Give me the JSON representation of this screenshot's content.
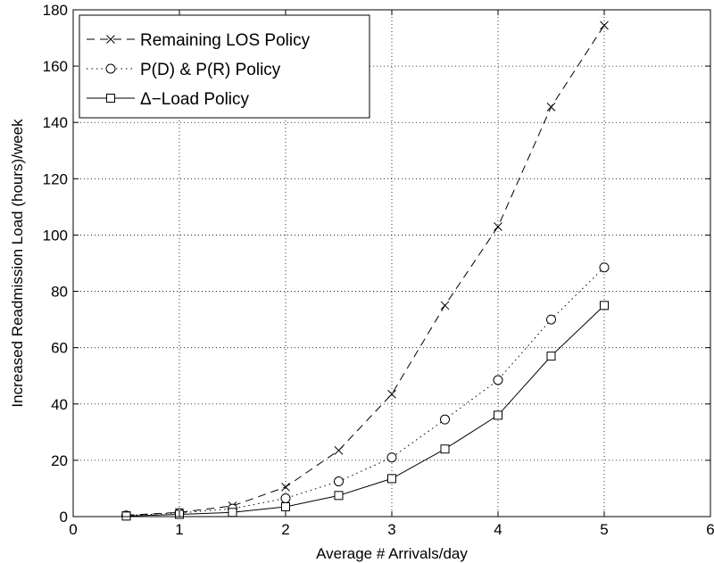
{
  "chart_data": {
    "type": "line",
    "title": "",
    "xlabel": "Average # Arrivals/day",
    "ylabel": "Increased Readmission Load (hours)/week",
    "xlim": [
      0,
      6
    ],
    "ylim": [
      0,
      180
    ],
    "xticks": [
      0,
      1,
      2,
      3,
      4,
      5,
      6
    ],
    "yticks": [
      0,
      20,
      40,
      60,
      80,
      100,
      120,
      140,
      160,
      180
    ],
    "grid": true,
    "legend_position": "top-left",
    "x": [
      0.5,
      1,
      1.5,
      2,
      2.5,
      3,
      3.5,
      4,
      4.5,
      5
    ],
    "series": [
      {
        "name": "Remaining LOS Policy",
        "line_style": "dashed",
        "marker": "x",
        "values": [
          0.5,
          1.5,
          3.8,
          10.5,
          23.5,
          43.5,
          75,
          103,
          145.5,
          174.5
        ]
      },
      {
        "name": "P(D) & P(R) Policy",
        "line_style": "dotted",
        "marker": "circle",
        "values": [
          0.4,
          1.3,
          2.8,
          6.5,
          12.5,
          21,
          34.5,
          48.5,
          70,
          88.5
        ]
      },
      {
        "name": "Δ−Load Policy",
        "line_style": "solid",
        "marker": "square",
        "values": [
          0.2,
          0.8,
          1.5,
          3.5,
          7.5,
          13.5,
          24,
          36,
          57,
          75
        ]
      }
    ]
  }
}
